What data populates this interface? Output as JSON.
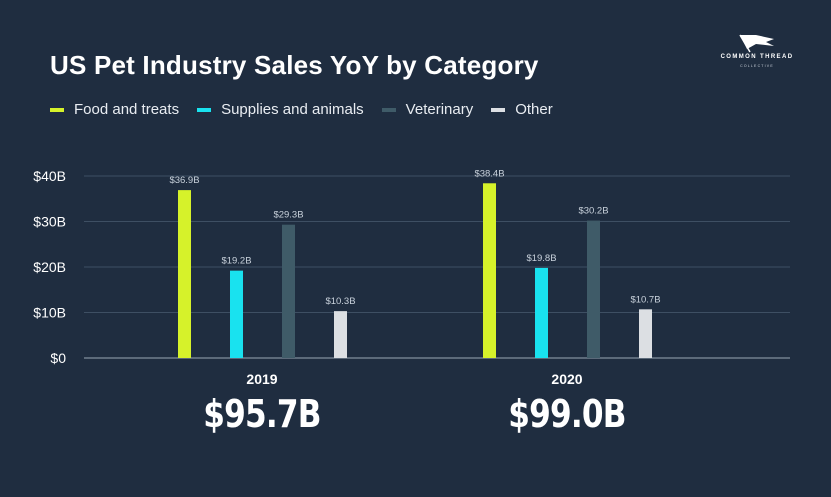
{
  "title": "US Pet Industry Sales YoY by Category",
  "logo": {
    "name": "COMMON THREAD",
    "sub": "COLLECTIVE",
    "icon": "flag-icon"
  },
  "legend": [
    {
      "label": "Food and treats",
      "color": "#d6f22a"
    },
    {
      "label": "Supplies and animals",
      "color": "#19e2ef"
    },
    {
      "label": "Veterinary",
      "color": "#3f5b68"
    },
    {
      "label": "Other",
      "color": "#dcdfe3"
    }
  ],
  "totals": [
    "$95.7B",
    "$99.0B"
  ],
  "chart_data": {
    "type": "bar",
    "categories": [
      "2019",
      "2020"
    ],
    "series": [
      {
        "name": "Food and treats",
        "values": [
          36.9,
          38.4
        ],
        "labels": [
          "$36.9B",
          "$38.4B"
        ]
      },
      {
        "name": "Supplies and animals",
        "values": [
          19.2,
          19.8
        ],
        "labels": [
          "$19.2B",
          "$19.8B"
        ]
      },
      {
        "name": "Veterinary",
        "values": [
          29.3,
          30.2
        ],
        "labels": [
          "$29.3B",
          "$30.2B"
        ]
      },
      {
        "name": "Other",
        "values": [
          10.3,
          10.7
        ],
        "labels": [
          "$10.3B",
          "$10.7B"
        ]
      }
    ],
    "yticks": [
      "$0",
      "$10B",
      "$20B",
      "$30B",
      "$40B"
    ],
    "ylim": [
      0,
      40
    ],
    "grid": true,
    "legend_position": "top-left"
  }
}
